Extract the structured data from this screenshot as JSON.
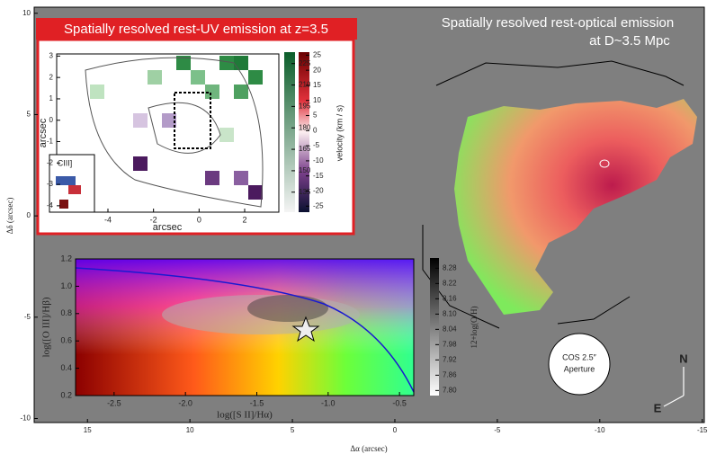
{
  "chart_data": [
    {
      "type": "image",
      "title": "Spatially resolved rest-optical emission",
      "subtitle": "at D~3.5 Mpc",
      "x_label": "Δα (arcsec)",
      "y_label": "Δδ (arcsec)",
      "xlim": [
        17.6,
        -15.1
      ],
      "ylim": [
        -10.2,
        10.3
      ],
      "xticks": [
        15,
        10,
        5,
        0,
        -5,
        -10,
        -15
      ],
      "yticks": [
        10,
        5,
        0,
        -5,
        -10
      ],
      "annotations": [
        "COS 2.5″",
        "Aperture",
        "N",
        "E"
      ]
    },
    {
      "type": "heatmap",
      "title": "Spatially resolved rest-UV emission at z=3.5",
      "x_label": "arcsec",
      "y_label": "arcsec",
      "annotation": "CIII]",
      "xlim": [
        -6.25,
        3.5
      ],
      "ylim": [
        -4.3,
        3.1
      ],
      "xticks": [
        -4,
        -2,
        0,
        2
      ],
      "yticks": [
        3,
        2,
        1,
        0,
        -1,
        -2,
        -3,
        -4
      ],
      "colorbars": [
        {
          "lim": [
            121,
            233
          ],
          "ticks": [
            225,
            210,
            195,
            180,
            165,
            150,
            135
          ]
        },
        {
          "label": "velocity (km / s)",
          "lim": [
            -27,
            26
          ],
          "ticks": [
            25,
            20,
            15,
            10,
            5,
            0,
            -5,
            -10,
            -15,
            -20,
            -25
          ]
        }
      ]
    },
    {
      "type": "scatter",
      "x_label": "log([S II]/Hα)",
      "y_label": "log([O III]/Hβ)",
      "xlim": [
        -2.77,
        -0.4
      ],
      "ylim": [
        0.2,
        1.2
      ],
      "xticks": [
        -2.5,
        {
          "value": -2,
          "label": "-2.0"
        },
        -1.5,
        {
          "value": -1,
          "label": "-1.0"
        },
        -0.5
      ],
      "yticks": [
        0.2,
        0.4,
        0.6,
        0.8,
        {
          "value": 1,
          "label": "1.0"
        },
        1.2
      ],
      "colorbar": {
        "label": "12+log(O/H)",
        "lim": [
          7.78,
          8.32
        ],
        "ticks": [
          8.28,
          8.22,
          8.16,
          {
            "value": 8.1,
            "label": "8.10"
          },
          8.04,
          7.98,
          7.92,
          7.86,
          {
            "value": 7.8,
            "label": "7.80"
          }
        ]
      }
    }
  ]
}
